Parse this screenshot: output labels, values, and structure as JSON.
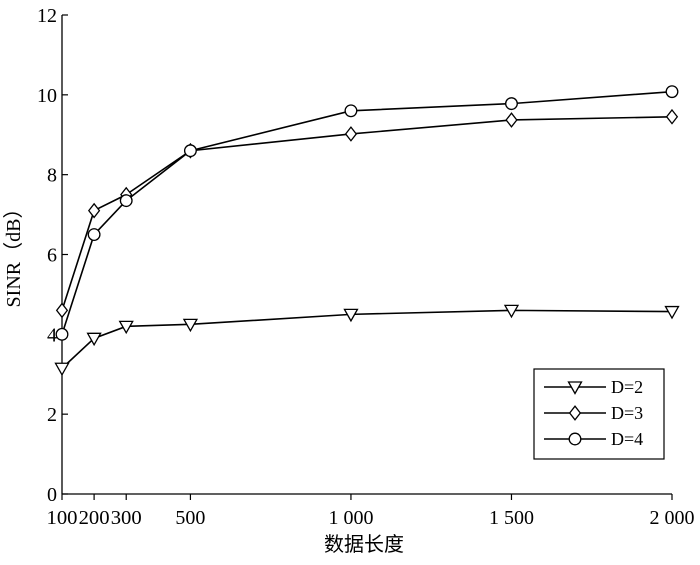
{
  "chart_data": {
    "type": "line",
    "xlabel": "数据长度",
    "ylabel": "SINR（dB）",
    "xlim": [
      100,
      2000
    ],
    "ylim": [
      0,
      12
    ],
    "x_ticks": [
      100,
      200,
      300,
      500,
      1000,
      1500,
      2000
    ],
    "x_tick_labels": [
      "100",
      "200",
      "300",
      "500",
      "1 000",
      "1 500",
      "2 000"
    ],
    "y_ticks": [
      0,
      2,
      4,
      6,
      8,
      10,
      12
    ],
    "y_tick_labels": [
      "0",
      "2",
      "4",
      "6",
      "8",
      "10",
      "12"
    ],
    "grid": false,
    "legend_position": "bottom-right",
    "x": [
      100,
      200,
      300,
      500,
      1000,
      1500,
      2000
    ],
    "series": [
      {
        "name": "D=2",
        "marker": "triangle-down",
        "values": [
          3.15,
          3.9,
          4.2,
          4.25,
          4.5,
          4.6,
          4.57
        ]
      },
      {
        "name": "D=3",
        "marker": "diamond",
        "values": [
          4.6,
          7.1,
          7.5,
          8.6,
          9.02,
          9.37,
          9.45
        ]
      },
      {
        "name": "D=4",
        "marker": "circle",
        "values": [
          4.0,
          6.5,
          7.35,
          8.6,
          9.6,
          9.78,
          10.08
        ]
      }
    ]
  }
}
